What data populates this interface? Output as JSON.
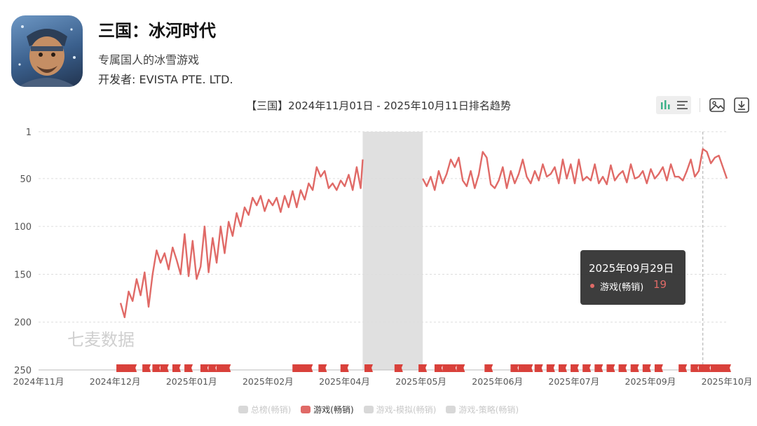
{
  "app": {
    "title": "三国：冰河时代",
    "subtitle": "专属国人的冰雪游戏",
    "developer": "开发者: EVISTA PTE. LTD."
  },
  "toolbar": {
    "icons": [
      "bar-chart-icon",
      "list-icon",
      "image-icon",
      "download-icon"
    ]
  },
  "tooltip": {
    "date": "2025年09月29日",
    "series": "游戏(畅销)",
    "value": "19"
  },
  "watermark": "七麦数据",
  "colors": {
    "line": "#e06a67",
    "shade": "#e0e0e0"
  },
  "chart_data": {
    "type": "line",
    "title": "【三国】2024年11月01日 - 2025年10月11日排名趋势",
    "y_inverted": true,
    "ylim": [
      1,
      250
    ],
    "yticks": [
      1,
      50,
      100,
      150,
      200,
      250
    ],
    "x_ticks": [
      "2024年11月",
      "2024年12月",
      "2025年01月",
      "2025年02月",
      "2025年04月",
      "2025年05月",
      "2025年06月",
      "2025年07月",
      "2025年09月",
      "2025年10月"
    ],
    "grid": true,
    "legend_position": "bottom",
    "legend": [
      "总榜(畅销)",
      "游戏(畅销)",
      "游戏-模拟(畅销)",
      "游戏-策略(畅销)"
    ],
    "shaded_range": [
      "2025-04-12",
      "2025-05-12"
    ],
    "series": [
      {
        "name": "游戏(畅销)",
        "points": [
          [
            "2024-12-12",
            180
          ],
          [
            "2024-12-14",
            195
          ],
          [
            "2024-12-16",
            168
          ],
          [
            "2024-12-18",
            178
          ],
          [
            "2024-12-20",
            155
          ],
          [
            "2024-12-22",
            172
          ],
          [
            "2024-12-24",
            148
          ],
          [
            "2024-12-26",
            184
          ],
          [
            "2024-12-28",
            150
          ],
          [
            "2024-12-30",
            125
          ],
          [
            "2025-01-01",
            138
          ],
          [
            "2025-01-03",
            128
          ],
          [
            "2025-01-05",
            145
          ],
          [
            "2025-01-07",
            122
          ],
          [
            "2025-01-09",
            135
          ],
          [
            "2025-01-11",
            150
          ],
          [
            "2025-01-13",
            108
          ],
          [
            "2025-01-15",
            152
          ],
          [
            "2025-01-17",
            115
          ],
          [
            "2025-01-19",
            155
          ],
          [
            "2025-01-21",
            142
          ],
          [
            "2025-01-23",
            100
          ],
          [
            "2025-01-25",
            148
          ],
          [
            "2025-01-27",
            112
          ],
          [
            "2025-01-29",
            138
          ],
          [
            "2025-01-31",
            100
          ],
          [
            "2025-02-02",
            128
          ],
          [
            "2025-02-04",
            95
          ],
          [
            "2025-02-06",
            110
          ],
          [
            "2025-02-08",
            86
          ],
          [
            "2025-02-10",
            100
          ],
          [
            "2025-02-12",
            80
          ],
          [
            "2025-02-14",
            88
          ],
          [
            "2025-02-16",
            70
          ],
          [
            "2025-02-18",
            78
          ],
          [
            "2025-02-20",
            68
          ],
          [
            "2025-02-22",
            84
          ],
          [
            "2025-02-24",
            72
          ],
          [
            "2025-02-26",
            78
          ],
          [
            "2025-02-28",
            70
          ],
          [
            "2025-03-02",
            85
          ],
          [
            "2025-03-04",
            68
          ],
          [
            "2025-03-06",
            80
          ],
          [
            "2025-03-08",
            63
          ],
          [
            "2025-03-10",
            80
          ],
          [
            "2025-03-12",
            62
          ],
          [
            "2025-03-14",
            72
          ],
          [
            "2025-03-16",
            55
          ],
          [
            "2025-03-18",
            62
          ],
          [
            "2025-03-20",
            38
          ],
          [
            "2025-03-22",
            48
          ],
          [
            "2025-03-24",
            42
          ],
          [
            "2025-03-26",
            60
          ],
          [
            "2025-03-28",
            55
          ],
          [
            "2025-03-30",
            62
          ],
          [
            "2025-04-01",
            52
          ],
          [
            "2025-04-03",
            58
          ],
          [
            "2025-04-05",
            46
          ],
          [
            "2025-04-07",
            62
          ],
          [
            "2025-04-09",
            38
          ],
          [
            "2025-04-11",
            60
          ],
          [
            "2025-04-12",
            30
          ],
          null,
          [
            "2025-05-12",
            50
          ],
          [
            "2025-05-14",
            58
          ],
          [
            "2025-05-16",
            48
          ],
          [
            "2025-05-18",
            62
          ],
          [
            "2025-05-20",
            42
          ],
          [
            "2025-05-22",
            55
          ],
          [
            "2025-05-24",
            45
          ],
          [
            "2025-05-26",
            30
          ],
          [
            "2025-05-28",
            38
          ],
          [
            "2025-05-30",
            28
          ],
          [
            "2025-06-01",
            52
          ],
          [
            "2025-06-03",
            58
          ],
          [
            "2025-06-05",
            42
          ],
          [
            "2025-06-07",
            60
          ],
          [
            "2025-06-09",
            46
          ],
          [
            "2025-06-11",
            22
          ],
          [
            "2025-06-13",
            28
          ],
          [
            "2025-06-15",
            56
          ],
          [
            "2025-06-17",
            60
          ],
          [
            "2025-06-19",
            52
          ],
          [
            "2025-06-21",
            38
          ],
          [
            "2025-06-23",
            60
          ],
          [
            "2025-06-25",
            42
          ],
          [
            "2025-06-27",
            55
          ],
          [
            "2025-06-29",
            45
          ],
          [
            "2025-07-01",
            30
          ],
          [
            "2025-07-03",
            48
          ],
          [
            "2025-07-05",
            55
          ],
          [
            "2025-07-07",
            42
          ],
          [
            "2025-07-09",
            52
          ],
          [
            "2025-07-11",
            35
          ],
          [
            "2025-07-13",
            48
          ],
          [
            "2025-07-15",
            45
          ],
          [
            "2025-07-17",
            38
          ],
          [
            "2025-07-19",
            55
          ],
          [
            "2025-07-21",
            30
          ],
          [
            "2025-07-23",
            50
          ],
          [
            "2025-07-25",
            35
          ],
          [
            "2025-07-27",
            55
          ],
          [
            "2025-07-29",
            30
          ],
          [
            "2025-07-31",
            52
          ],
          [
            "2025-08-02",
            48
          ],
          [
            "2025-08-04",
            52
          ],
          [
            "2025-08-06",
            35
          ],
          [
            "2025-08-08",
            55
          ],
          [
            "2025-08-10",
            48
          ],
          [
            "2025-08-12",
            56
          ],
          [
            "2025-08-14",
            36
          ],
          [
            "2025-08-16",
            52
          ],
          [
            "2025-08-18",
            46
          ],
          [
            "2025-08-20",
            42
          ],
          [
            "2025-08-22",
            54
          ],
          [
            "2025-08-24",
            35
          ],
          [
            "2025-08-26",
            50
          ],
          [
            "2025-08-28",
            48
          ],
          [
            "2025-08-30",
            42
          ],
          [
            "2025-09-01",
            55
          ],
          [
            "2025-09-03",
            40
          ],
          [
            "2025-09-05",
            50
          ],
          [
            "2025-09-07",
            45
          ],
          [
            "2025-09-09",
            38
          ],
          [
            "2025-09-11",
            52
          ],
          [
            "2025-09-13",
            35
          ],
          [
            "2025-09-15",
            48
          ],
          [
            "2025-09-17",
            48
          ],
          [
            "2025-09-19",
            52
          ],
          [
            "2025-09-21",
            42
          ],
          [
            "2025-09-23",
            30
          ],
          [
            "2025-09-25",
            48
          ],
          [
            "2025-09-27",
            42
          ],
          [
            "2025-09-29",
            19
          ],
          [
            "2025-10-01",
            22
          ],
          [
            "2025-10-03",
            34
          ],
          [
            "2025-10-05",
            28
          ],
          [
            "2025-10-07",
            26
          ],
          [
            "2025-10-09",
            38
          ],
          [
            "2025-10-11",
            50
          ]
        ]
      }
    ],
    "markers": [
      "2024-12-12",
      "2024-12-15",
      "2024-12-18",
      "2024-12-25",
      "2024-12-30",
      "2025-01-03",
      "2025-01-09",
      "2025-01-15",
      "2025-01-23",
      "2025-01-27",
      "2025-01-31",
      "2025-02-03",
      "2025-03-10",
      "2025-03-13",
      "2025-03-16",
      "2025-03-23",
      "2025-04-03",
      "2025-04-15",
      "2025-04-30",
      "2025-05-12",
      "2025-05-20",
      "2025-05-24",
      "2025-05-27",
      "2025-05-31",
      "2025-06-14",
      "2025-06-27",
      "2025-07-01",
      "2025-07-04",
      "2025-07-09",
      "2025-07-15",
      "2025-07-21",
      "2025-07-27",
      "2025-08-02",
      "2025-08-08",
      "2025-08-14",
      "2025-08-20",
      "2025-08-26",
      "2025-09-01",
      "2025-09-07",
      "2025-09-19",
      "2025-09-25",
      "2025-09-29",
      "2025-10-01",
      "2025-10-05",
      "2025-10-08",
      "2025-10-11"
    ],
    "crosshair_date": "2025-09-29"
  }
}
